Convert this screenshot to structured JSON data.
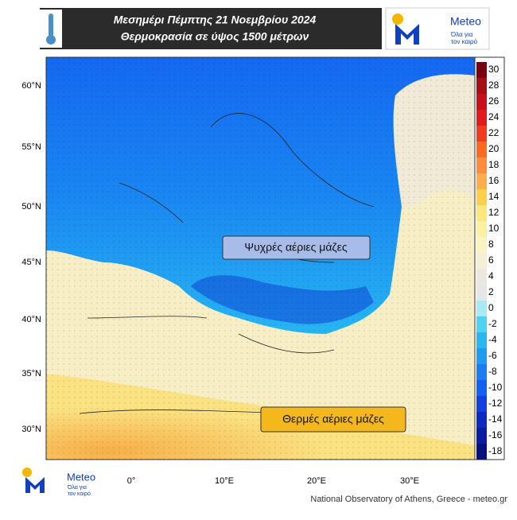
{
  "header": {
    "title_lines": [
      "Μεσημέρι Πέμπτης 21 Νοεμβρίου 2024",
      "Θερμοκρασία σε ύψος 1500 μέτρων"
    ]
  },
  "logo": {
    "name": "Meteo",
    "tagline_lines": [
      "Όλα για",
      "τον καιρό"
    ]
  },
  "map": {
    "lat_labels": [
      "60°N",
      "55°N",
      "50°N",
      "45°N",
      "40°N",
      "35°N",
      "30°N"
    ],
    "lon_labels": [
      "0°",
      "10°E",
      "20°E",
      "30°E"
    ],
    "annotations": [
      "Ψυχρές αέριες μάζες",
      "Θερμές αέριες μάζες"
    ]
  },
  "colorbar": {
    "ticks": [
      30,
      28,
      26,
      24,
      22,
      20,
      18,
      16,
      14,
      12,
      10,
      8,
      6,
      4,
      2,
      0,
      -2,
      -4,
      -6,
      -8,
      -10,
      -12,
      -14,
      -16,
      -18
    ],
    "colors": [
      "#7a0010",
      "#a50f15",
      "#c8101a",
      "#e31a1c",
      "#f03b20",
      "#fb6a1f",
      "#fd8d3c",
      "#fdae4b",
      "#fdd049",
      "#fee77a",
      "#fdf0a0",
      "#fbf3c0",
      "#f5f0d5",
      "#ece8de",
      "#e6e6e6",
      "#a9e8f5",
      "#4dd3f0",
      "#28b8f0",
      "#1e9cf0",
      "#1a7ef0",
      "#1460f0",
      "#1040e0",
      "#0c2ac0",
      "#0a1ca0",
      "#081080"
    ]
  },
  "credit": "National Observatory of Athens, Greece - meteo.gr"
}
